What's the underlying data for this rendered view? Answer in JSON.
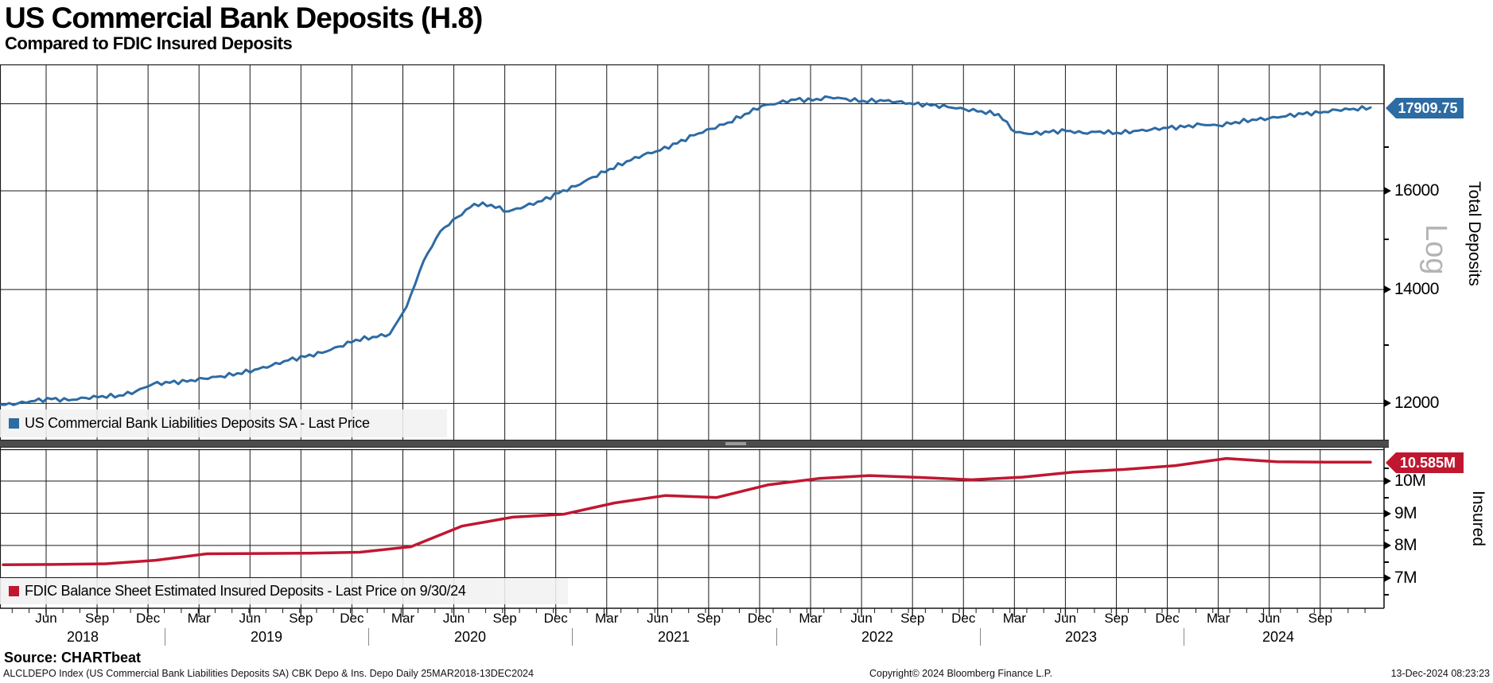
{
  "header": {
    "title": "US Commercial Bank Deposits (H.8)",
    "subtitle": "Compared to FDIC Insured Deposits"
  },
  "top_panel": {
    "legend": "US Commercial Bank Liabilities Deposits SA - Last Price",
    "last_price_label": "17909.75",
    "axis_title": "Total Deposits",
    "scale_label": "Log",
    "y_tick_labels": [
      "12000",
      "14000",
      "16000"
    ]
  },
  "bottom_panel": {
    "legend": "FDIC Balance Sheet Estimated Insured Deposits - Last Price on 9/30/24",
    "last_price_label": "10.585M",
    "axis_title": "Insured",
    "y_tick_labels": [
      "7M",
      "8M",
      "9M",
      "10M"
    ]
  },
  "x_axis": {
    "month_labels": [
      "Jun",
      "Sep",
      "Dec",
      "Mar",
      "Jun",
      "Sep",
      "Dec",
      "Mar",
      "Jun",
      "Sep",
      "Dec",
      "Mar",
      "Jun",
      "Sep",
      "Dec",
      "Mar",
      "Jun",
      "Sep",
      "Dec",
      "Mar",
      "Jun",
      "Sep",
      "Dec",
      "Mar",
      "Jun",
      "Sep"
    ],
    "year_labels": [
      "2018",
      "2019",
      "2020",
      "2021",
      "2022",
      "2023",
      "2024"
    ]
  },
  "footer": {
    "source": "Source: CHARTbeat",
    "left": "ALCLDEPO Index (US Commercial Bank Liabilities Deposits SA) CBK Depo & Ins. Depo  Daily 25MAR2018-13DEC2024",
    "copyright": "Copyright© 2024 Bloomberg Finance L.P.",
    "timestamp": "13-Dec-2024 08:23:23"
  },
  "colors": {
    "blue_line": "#2d6ba3",
    "red_line": "#c01731",
    "grid": "#1a1a1a",
    "log_label": "#b4b4b4"
  },
  "chart_data": [
    {
      "type": "line",
      "name": "US Commercial Bank Liabilities Deposits SA - Last Price",
      "frequency": "monthly",
      "x_start": "2018-03",
      "x_end": "2024-12",
      "yscale": "log",
      "ylabel": "Total Deposits",
      "ylim": [
        11425,
        18990
      ],
      "yticks": [
        12000,
        14000,
        16000,
        18000
      ],
      "last_price": 17909.75,
      "values": [
        11980,
        12000,
        12040,
        12070,
        12050,
        12090,
        12120,
        12130,
        12200,
        12320,
        12340,
        12360,
        12410,
        12450,
        12500,
        12560,
        12630,
        12720,
        12780,
        12850,
        12960,
        13080,
        13130,
        13180,
        13680,
        14550,
        15150,
        15440,
        15720,
        15700,
        15560,
        15670,
        15780,
        15950,
        16100,
        16300,
        16480,
        16650,
        16800,
        16900,
        17060,
        17250,
        17400,
        17550,
        17750,
        17950,
        18020,
        18100,
        18080,
        18160,
        18120,
        18070,
        18090,
        18050,
        17990,
        17960,
        17920,
        17870,
        17820,
        17750,
        17320,
        17280,
        17320,
        17350,
        17300,
        17340,
        17310,
        17350,
        17380,
        17420,
        17440,
        17500,
        17480,
        17560,
        17620,
        17650,
        17700,
        17750,
        17780,
        17850,
        17880,
        17909.75
      ]
    },
    {
      "type": "line",
      "name": "FDIC Balance Sheet Estimated Insured Deposits",
      "frequency": "quarterly",
      "x_start": "2018-03",
      "x_end": "2024-09",
      "unit": "M",
      "yscale": "linear",
      "ylabel": "Insured",
      "ylim": [
        6.05,
        10.99
      ],
      "yticks": [
        7,
        8,
        9,
        10
      ],
      "last_price": 10.585,
      "last_price_date": "9/30/24",
      "values": [
        7.4,
        7.41,
        7.43,
        7.54,
        7.74,
        7.75,
        7.76,
        7.79,
        7.96,
        8.6,
        8.88,
        8.97,
        9.32,
        9.55,
        9.49,
        9.88,
        10.08,
        10.17,
        10.11,
        10.04,
        10.12,
        10.28,
        10.36,
        10.48,
        10.7,
        10.6,
        10.585
      ]
    }
  ]
}
